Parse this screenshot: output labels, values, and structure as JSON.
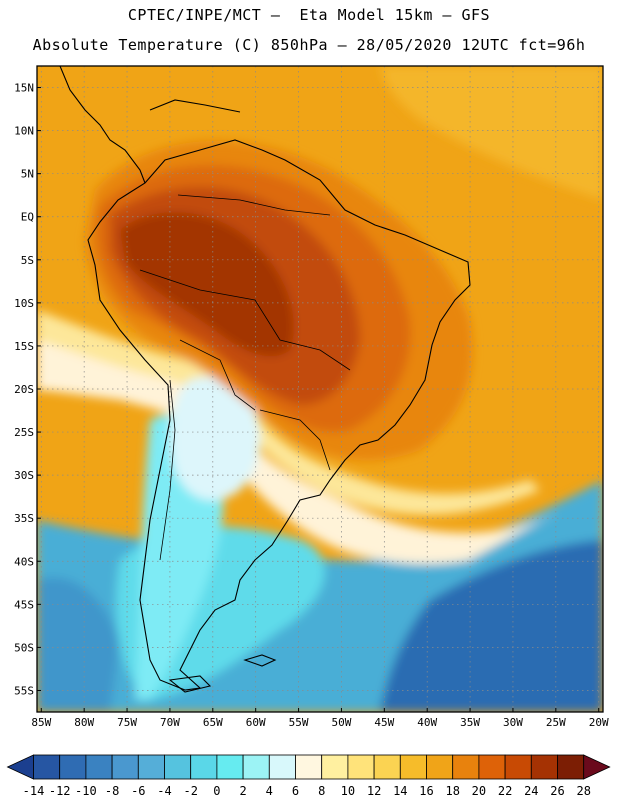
{
  "header": {
    "line1": "CPTEC/INPE/MCT –  Eta Model 15km – GFS",
    "line2": "Absolute Temperature (C) 850hPa – 28/05/2020 12UTC fct=96h"
  },
  "map": {
    "lat_labels": [
      "15N",
      "10N",
      "5N",
      "EQ",
      "5S",
      "10S",
      "15S",
      "20S",
      "25S",
      "30S",
      "35S",
      "40S",
      "45S",
      "50S",
      "55S"
    ],
    "lon_labels": [
      "85W",
      "80W",
      "75W",
      "70W",
      "65W",
      "60W",
      "55W",
      "50W",
      "45W",
      "40W",
      "35W",
      "30W",
      "25W",
      "20W"
    ],
    "lat_range": [
      17.5,
      -57.5
    ],
    "lon_range": [
      -85.5,
      -19.5
    ]
  },
  "colorbar": {
    "ticks": [
      "-14",
      "-12",
      "-10",
      "-8",
      "-6",
      "-4",
      "-2",
      "0",
      "2",
      "4",
      "6",
      "8",
      "10",
      "12",
      "14",
      "16",
      "18",
      "20",
      "22",
      "24",
      "26",
      "28"
    ],
    "colors": [
      "#1b3f8f",
      "#2656a3",
      "#2f6cb3",
      "#3a82c1",
      "#4a98cf",
      "#55aed8",
      "#55c3df",
      "#5ad7e8",
      "#66ebf0",
      "#9cf3f5",
      "#d8f8fb",
      "#fff7e0",
      "#fff0a0",
      "#ffe37a",
      "#fbd352",
      "#f6bc2a",
      "#f0a418",
      "#e8820d",
      "#de6208",
      "#c84a04",
      "#a53203",
      "#7c1e04",
      "#6a0a1c"
    ]
  },
  "palette": {
    "t28": "#a33505",
    "t26": "#c24c08",
    "t24": "#dd6a0c",
    "t22": "#e8860f",
    "t20": "#f0a416",
    "t18": "#f4b62a",
    "t16": "#fad65b",
    "t14": "#fde79a",
    "t10": "#fff3d8",
    "t8": "#ddf6fb",
    "t6": "#a6effa",
    "t4": "#7eebf5",
    "t2": "#5fdbea",
    "t0": "#4fc6e0",
    "tm2": "#4aaed6",
    "tm4": "#3f96cb",
    "tm6": "#3580c0",
    "tm8": "#2c6cb2"
  }
}
